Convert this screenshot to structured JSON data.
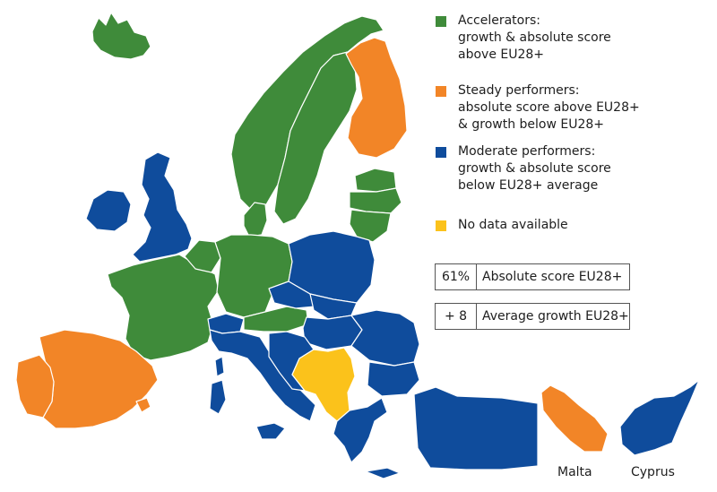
{
  "colors": {
    "accelerators": "#3f8b3a",
    "steady": "#f28527",
    "moderate": "#0f4c9c",
    "no_data": "#fbc21b"
  },
  "legend": [
    {
      "key": "accelerators",
      "lines": [
        "Accelerators:",
        "growth & absolute score",
        "above EU28+"
      ]
    },
    {
      "key": "steady",
      "lines": [
        "Steady performers:",
        "absolute score above EU28+",
        "& growth below EU28+"
      ]
    },
    {
      "key": "moderate",
      "lines": [
        "Moderate performers:",
        "growth & absolute score",
        "below EU28+ average"
      ]
    },
    {
      "key": "no_data",
      "lines": [
        "No data available"
      ]
    }
  ],
  "stats": [
    {
      "value": "61%",
      "label": "Absolute score EU28+"
    },
    {
      "value": "+ 8",
      "label": "Average growth EU28+"
    }
  ],
  "insets": {
    "malta": {
      "label": "Malta",
      "category": "steady"
    },
    "cyprus": {
      "label": "Cyprus",
      "category": "moderate"
    }
  }
}
